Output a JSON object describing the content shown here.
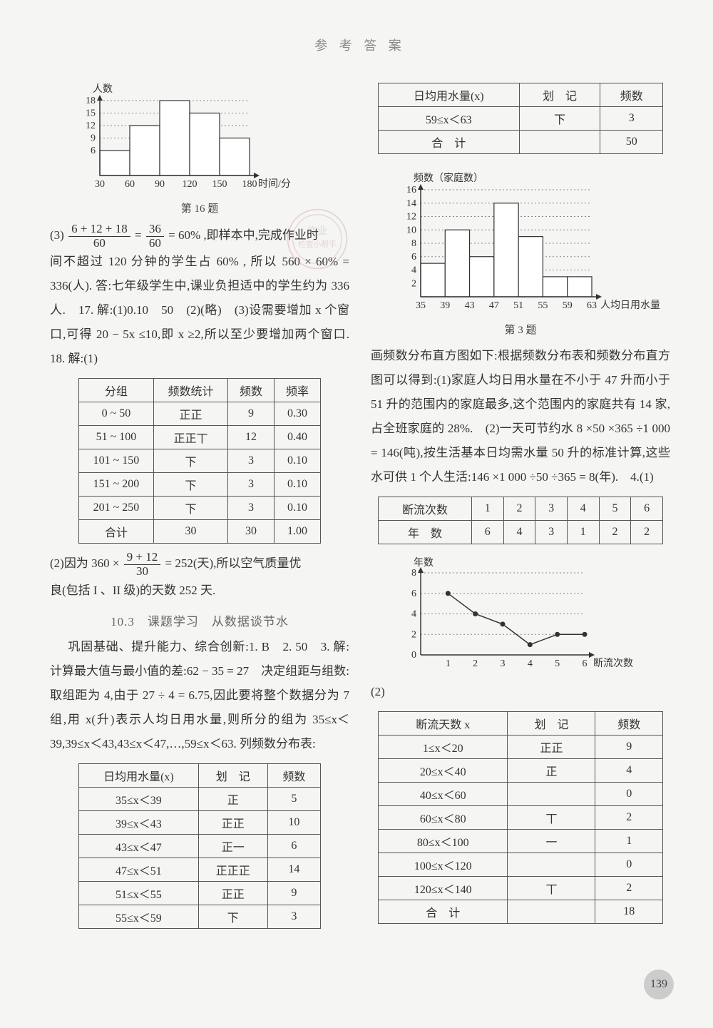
{
  "header": "参 考 答 案",
  "page_number": "139",
  "left": {
    "chart16": {
      "type": "histogram",
      "ylabel": "人数",
      "xlabel": "时间/分",
      "caption": "第 16 题",
      "x_ticks": [
        30,
        60,
        90,
        120,
        150,
        180
      ],
      "y_ticks": [
        6,
        9,
        12,
        15,
        18
      ],
      "bars": [
        {
          "x0": 30,
          "x1": 60,
          "y": 6
        },
        {
          "x0": 60,
          "x1": 90,
          "y": 12
        },
        {
          "x0": 90,
          "x1": 120,
          "y": 18
        },
        {
          "x0": 120,
          "x1": 150,
          "y": 15
        },
        {
          "x0": 150,
          "x1": 180,
          "y": 9
        }
      ],
      "grid_color": "#888",
      "bar_fill": "#ffffff",
      "bar_stroke": "#333",
      "axis_color": "#333",
      "label_fontsize": 14
    },
    "text_block1_a": "(3)",
    "frac1_num": "6 + 12 + 18",
    "frac1_den": "60",
    "text_block1_b": " = ",
    "frac2_num": "36",
    "frac2_den": "60",
    "text_block1_c": " = 60% ,即样本中,完成作业时",
    "text_block2": "间不超过 120 分钟的学生占 60% , 所以 560 × 60% = 336(人). 答:七年级学生中,课业负担适中的学生约为 336 人.　17. 解:(1)0.10　50　(2)(略)　(3)设需要增加 x 个窗口,可得 20 − 5x ≤10,即 x ≥2,所以至少要增加两个窗口.　18. 解:(1)",
    "table18": {
      "columns": [
        "分组",
        "频数统计",
        "频数",
        "频率"
      ],
      "rows": [
        [
          "0 ~ 50",
          "正正",
          "9",
          "0.30"
        ],
        [
          "51 ~ 100",
          "正正丅",
          "12",
          "0.40"
        ],
        [
          "101 ~ 150",
          "下",
          "3",
          "0.10"
        ],
        [
          "151 ~ 200",
          "下",
          "3",
          "0.10"
        ],
        [
          "201 ~ 250",
          "下",
          "3",
          "0.10"
        ],
        [
          "合计",
          "30",
          "30",
          "1.00"
        ]
      ]
    },
    "text_block3_a": "(2)因为 360 ×",
    "frac3_num": "9 + 12",
    "frac3_den": "30",
    "text_block3_b": " = 252(天),所以空气质量优",
    "text_block3_c": "良(包括 I 、II 级)的天数 252 天.",
    "section_103": "10.3　课题学习　从数据谈节水",
    "text_block4": "巩固基础、提升能力、综合创新:1. B　2. 50　3. 解:计算最大值与最小值的差:62 − 35 = 27　决定组距与组数:取组距为 4,由于 27 ÷ 4 = 6.75,因此要将整个数据分为 7 组,用 x(升)表示人均日用水量,则所分的组为 35≤x＜39,39≤x＜43,43≤x＜47,…,59≤x＜63. 列频数分布表:",
    "table_water_a": {
      "columns": [
        "日均用水量(x)",
        "划　记",
        "频数"
      ],
      "rows": [
        [
          "35≤x＜39",
          "正",
          "5"
        ],
        [
          "39≤x＜43",
          "正正",
          "10"
        ],
        [
          "43≤x＜47",
          "正一",
          "6"
        ],
        [
          "47≤x＜51",
          "正正正",
          "14"
        ],
        [
          "51≤x＜55",
          "正正",
          "9"
        ],
        [
          "55≤x＜59",
          "下",
          "3"
        ]
      ]
    }
  },
  "right": {
    "table_water_b": {
      "columns": [
        "日均用水量(x)",
        "划　记",
        "频数"
      ],
      "rows": [
        [
          "59≤x＜63",
          "下",
          "3"
        ],
        [
          "合　计",
          "",
          "50"
        ]
      ]
    },
    "chart3": {
      "type": "histogram",
      "ylabel": "频数（家庭数）",
      "xlabel": "人均日用水量",
      "caption": "第 3 题",
      "x_ticks": [
        35,
        39,
        43,
        47,
        51,
        55,
        59,
        63
      ],
      "y_ticks": [
        0,
        2,
        4,
        6,
        8,
        10,
        12,
        14,
        16
      ],
      "bars": [
        {
          "x0": 35,
          "x1": 39,
          "y": 5
        },
        {
          "x0": 39,
          "x1": 43,
          "y": 10
        },
        {
          "x0": 43,
          "x1": 47,
          "y": 6
        },
        {
          "x0": 47,
          "x1": 51,
          "y": 14
        },
        {
          "x0": 51,
          "x1": 55,
          "y": 9
        },
        {
          "x0": 55,
          "x1": 59,
          "y": 3
        },
        {
          "x0": 59,
          "x1": 63,
          "y": 3
        }
      ],
      "grid_color": "#888",
      "bar_fill": "#ffffff",
      "bar_stroke": "#333",
      "axis_color": "#333",
      "label_fontsize": 14
    },
    "text_block_r1": "画频数分布直方图如下:根据频数分布表和频数分布直方图可以得到:(1)家庭人均日用水量在不小于 47 升而小于 51 升的范围内的家庭最多,这个范围内的家庭共有 14 家,占全班家庭的 28%.　(2)一天可节约水 8 ×50 ×365 ÷1 000 = 146(吨),按生活基本日均需水量 50 升的标准计算,这些水可供 1 个人生活:146 ×1 000 ÷50 ÷365 = 8(年).　4.(1)",
    "table4a": {
      "rows": [
        [
          "断流次数",
          "1",
          "2",
          "3",
          "4",
          "5",
          "6"
        ],
        [
          "年　数",
          "6",
          "4",
          "3",
          "1",
          "2",
          "2"
        ]
      ]
    },
    "chart_line": {
      "type": "line",
      "ylabel": "年数",
      "xlabel": "断流次数",
      "x_ticks": [
        1,
        2,
        3,
        4,
        5,
        6
      ],
      "y_ticks": [
        0,
        2,
        4,
        6,
        8
      ],
      "points": [
        [
          1,
          6
        ],
        [
          2,
          4
        ],
        [
          3,
          3
        ],
        [
          4,
          1
        ],
        [
          5,
          2
        ],
        [
          6,
          2
        ]
      ],
      "line_color": "#333",
      "marker_fill": "#333",
      "grid_color": "#888",
      "axis_color": "#333",
      "label_fontsize": 14
    },
    "text_block_r2": "(2)",
    "table4b": {
      "columns": [
        "断流天数 x",
        "划　记",
        "频数"
      ],
      "rows": [
        [
          "1≤x＜20",
          "正正",
          "9"
        ],
        [
          "20≤x＜40",
          "正",
          "4"
        ],
        [
          "40≤x＜60",
          "",
          "0"
        ],
        [
          "60≤x＜80",
          "丅",
          "2"
        ],
        [
          "80≤x＜100",
          "一",
          "1"
        ],
        [
          "100≤x＜120",
          "",
          "0"
        ],
        [
          "120≤x＜140",
          "丅",
          "2"
        ],
        [
          "合　计",
          "",
          "18"
        ]
      ]
    }
  }
}
